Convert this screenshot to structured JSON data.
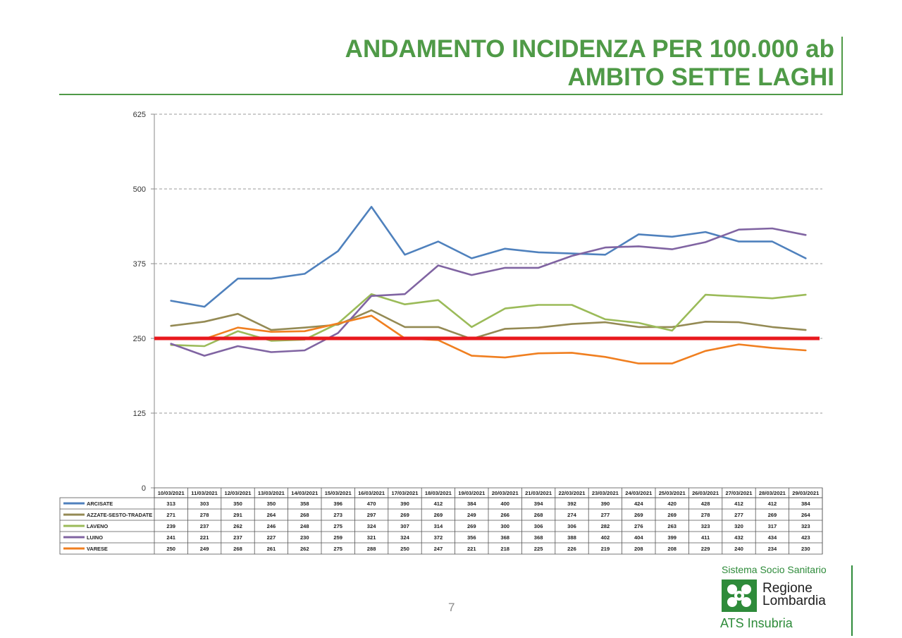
{
  "slide": {
    "title_line1": "ANDAMENTO INCIDENZA PER 100.000 ab",
    "title_line2": "AMBITO SETTE LAGHI",
    "page_number": "7",
    "logo": {
      "system": "Sistema Socio Sanitario",
      "region_line1": "Regione",
      "region_line2": "Lombardia",
      "agency": "ATS Insubria"
    }
  },
  "chart_data": {
    "type": "line",
    "ylim": [
      0,
      625
    ],
    "yticks": [
      0,
      125,
      250,
      375,
      500,
      625
    ],
    "grid": "horizontal dashed",
    "legend": "data table below chart",
    "threshold": {
      "value": 250,
      "color": "#e8191e"
    },
    "categories": [
      "10/03/2021",
      "11/03/2021",
      "12/03/2021",
      "13/03/2021",
      "14/03/2021",
      "15/03/2021",
      "16/03/2021",
      "17/03/2021",
      "18/03/2021",
      "19/03/2021",
      "20/03/2021",
      "21/03/2021",
      "22/03/2021",
      "23/03/2021",
      "24/03/2021",
      "25/03/2021",
      "26/03/2021",
      "27/03/2021",
      "28/03/2021",
      "29/03/2021"
    ],
    "series": [
      {
        "name": "ARCISATE",
        "color": "#4f81bd",
        "values": [
          313,
          303,
          350,
          350,
          358,
          396,
          470,
          390,
          412,
          384,
          400,
          394,
          392,
          390,
          424,
          420,
          428,
          412,
          412,
          384
        ]
      },
      {
        "name": "AZZATE-SESTO-TRADATE",
        "color": "#948a54",
        "values": [
          271,
          278,
          291,
          264,
          268,
          273,
          297,
          269,
          269,
          249,
          266,
          268,
          274,
          277,
          269,
          269,
          278,
          277,
          269,
          264
        ]
      },
      {
        "name": "LAVENO",
        "color": "#9bbb59",
        "values": [
          239,
          237,
          262,
          246,
          248,
          275,
          324,
          307,
          314,
          269,
          300,
          306,
          306,
          282,
          276,
          263,
          323,
          320,
          317,
          323
        ]
      },
      {
        "name": "LUINO",
        "color": "#8064a2",
        "values": [
          241,
          221,
          237,
          227,
          230,
          259,
          321,
          324,
          372,
          356,
          368,
          368,
          388,
          402,
          404,
          399,
          411,
          432,
          434,
          423
        ]
      },
      {
        "name": "VARESE",
        "color": "#f07f20",
        "values": [
          250,
          249,
          268,
          261,
          262,
          275,
          288,
          250,
          247,
          221,
          218,
          225,
          226,
          219,
          208,
          208,
          229,
          240,
          234,
          230
        ]
      }
    ]
  }
}
